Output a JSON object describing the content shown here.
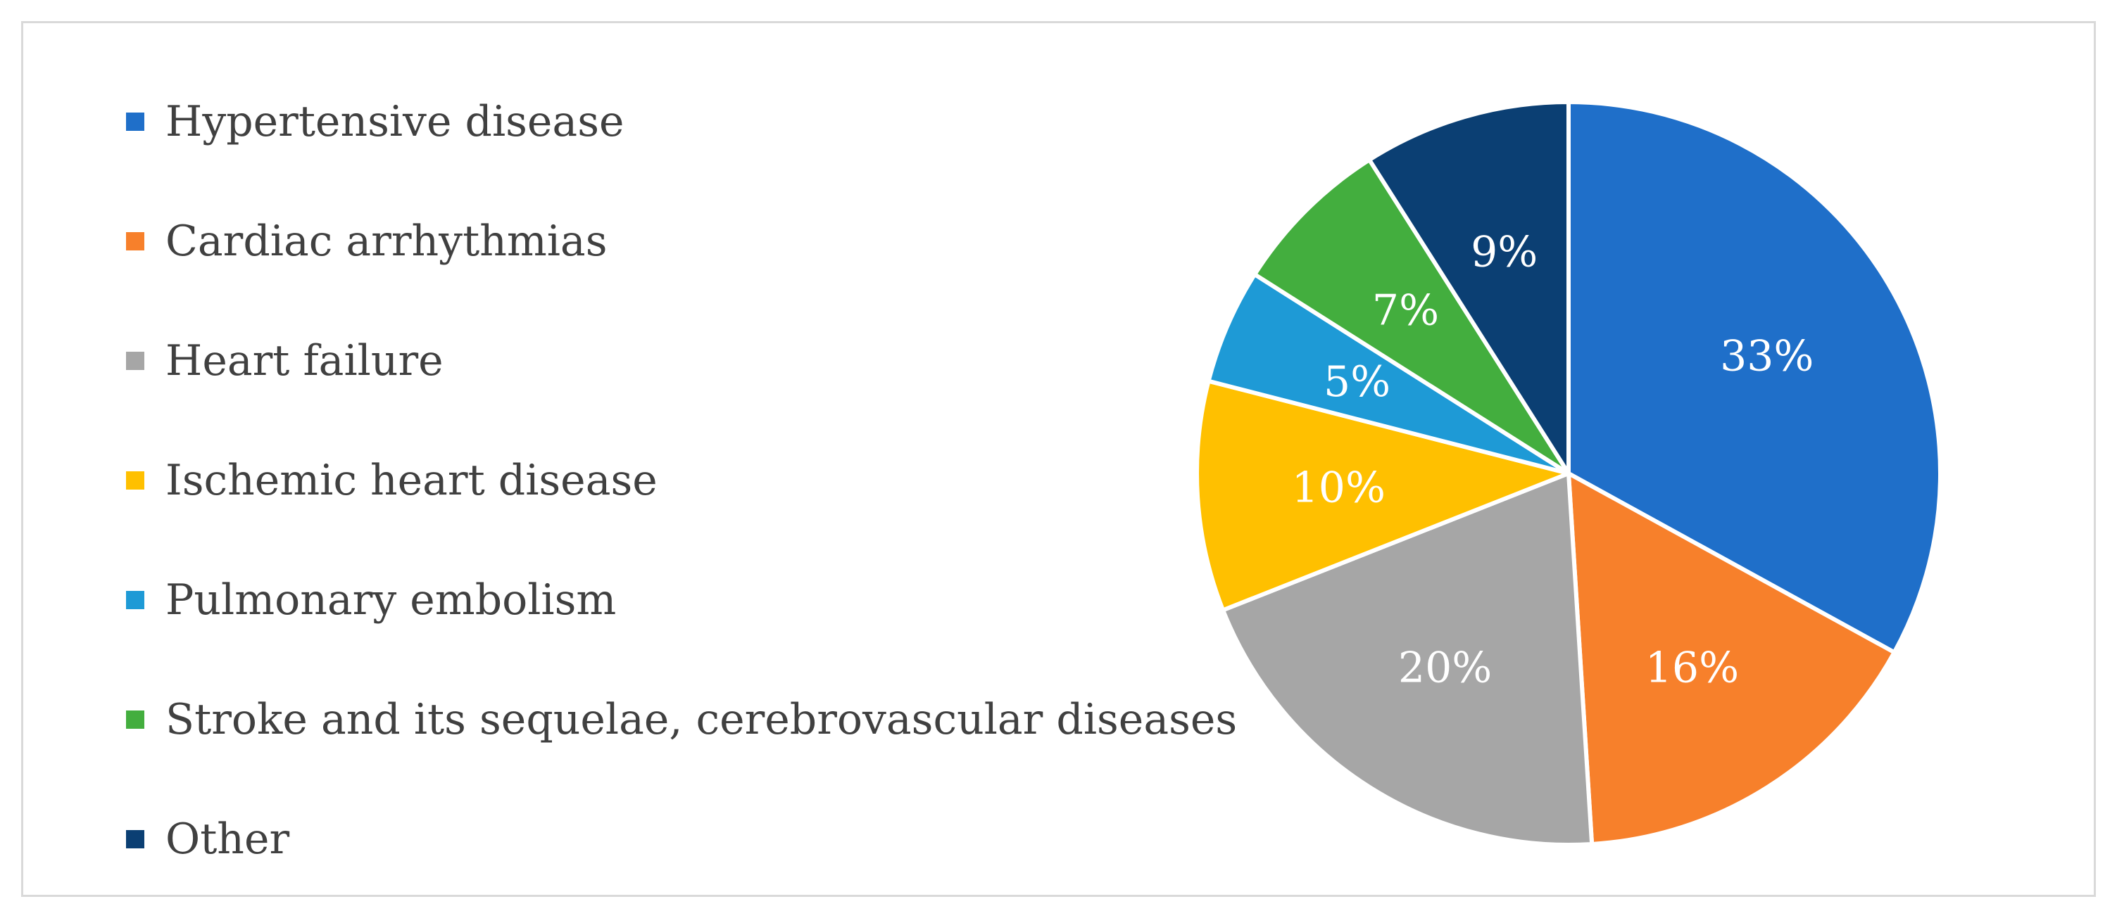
{
  "chart_data": {
    "type": "pie",
    "title": "",
    "categories": [
      "Hypertensive disease",
      "Cardiac arrhythmias",
      "Heart failure",
      "Ischemic heart disease",
      "Pulmonary embolism",
      "Stroke and its sequelae, cerebrovascular diseases",
      "Other"
    ],
    "values": [
      33,
      16,
      20,
      10,
      5,
      7,
      9
    ],
    "labels": [
      "33%",
      "16%",
      "20%",
      "10%",
      "5%",
      "7%",
      "9%"
    ],
    "colors": [
      "#1F6FC9",
      "#F7802B",
      "#A6A6A6",
      "#FFC000",
      "#1E9AD6",
      "#43AE3E",
      "#0B3F73"
    ],
    "legend_position": "left",
    "start_angle": "12-o'clock",
    "direction": "clockwise"
  }
}
